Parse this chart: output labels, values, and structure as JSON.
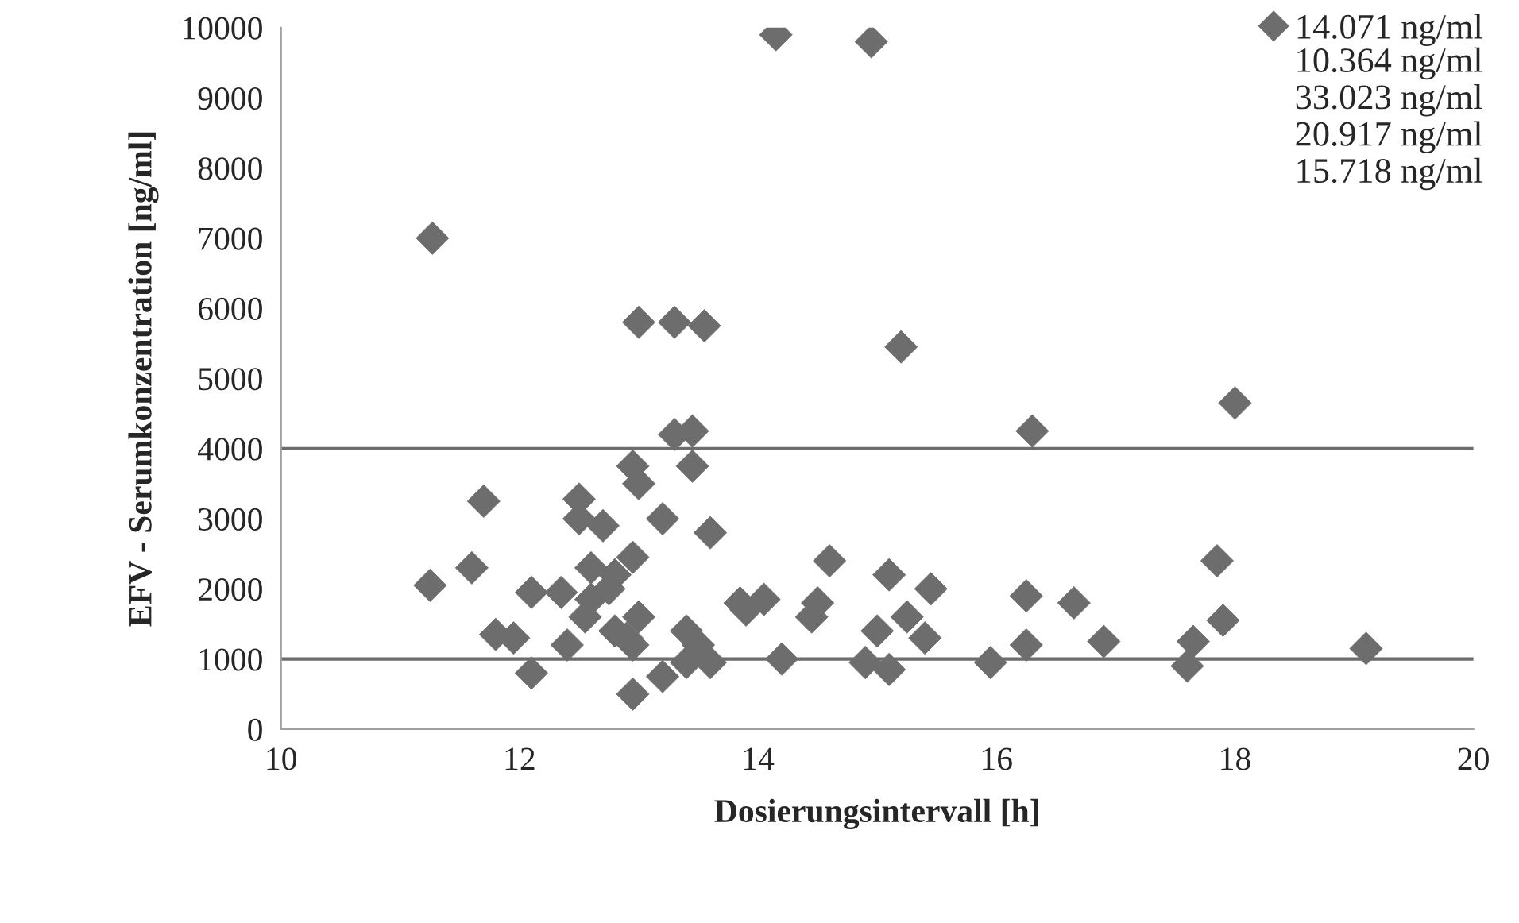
{
  "chart_data": {
    "type": "scatter",
    "xlabel": "Dosierungsintervall [h]",
    "ylabel": "EFV - Serumkonzentration [ng/ml]",
    "xlim": [
      10,
      20
    ],
    "xticks": [
      10,
      12,
      14,
      16,
      18,
      20
    ],
    "ylim": [
      0,
      10000
    ],
    "yticks": [
      0,
      1000,
      2000,
      3000,
      4000,
      5000,
      6000,
      7000,
      8000,
      9000,
      10000
    ],
    "grid": false,
    "legend": "top right",
    "marker": "diamond",
    "ref_lines": [
      {
        "axis": "y",
        "value": 1000,
        "color": "#6d6d6d"
      },
      {
        "axis": "y",
        "value": 4000,
        "color": "#6d6d6d"
      }
    ],
    "annotations": [
      "10.364 ng/ml",
      "33.023 ng/ml",
      "20.917 ng/ml",
      "15.718 ng/ml"
    ],
    "series": [
      {
        "name": "14.071 ng/ml",
        "color": "#6d6d6d",
        "x": [
          11.27,
          11.25,
          11.6,
          11.7,
          11.8,
          11.95,
          12.1,
          12.1,
          12.35,
          12.4,
          12.5,
          12.5,
          12.55,
          12.6,
          12.6,
          12.7,
          12.75,
          12.8,
          12.8,
          12.9,
          12.95,
          12.95,
          13.0,
          12.95,
          13.0,
          12.95,
          13.0,
          13.2,
          13.2,
          13.3,
          13.3,
          13.4,
          13.4,
          13.45,
          13.45,
          13.5,
          13.55,
          13.6,
          13.6,
          13.85,
          13.9,
          14.05,
          14.15,
          14.2,
          14.45,
          14.5,
          14.6,
          14.9,
          14.95,
          15.0,
          15.1,
          15.1,
          15.2,
          15.25,
          15.4,
          15.45,
          15.95,
          16.25,
          16.25,
          16.3,
          16.65,
          16.9,
          17.6,
          17.65,
          17.85,
          17.9,
          18.0,
          19.1
        ],
        "values": [
          7000,
          2050,
          2300,
          3250,
          1350,
          1300,
          800,
          1950,
          1950,
          1200,
          3280,
          3000,
          1600,
          1850,
          2300,
          2900,
          2000,
          2200,
          1400,
          1300,
          500,
          3750,
          3500,
          2450,
          1600,
          1200,
          5800,
          3000,
          750,
          4200,
          5800,
          1400,
          950,
          4250,
          3750,
          1200,
          5750,
          2800,
          950,
          1800,
          1700,
          1850,
          9900,
          1000,
          1600,
          1800,
          2400,
          950,
          9800,
          1400,
          850,
          2200,
          5450,
          1600,
          1300,
          2000,
          950,
          1900,
          1200,
          4250,
          1800,
          1250,
          900,
          1250,
          2400,
          1550,
          4650,
          1150
        ]
      }
    ]
  }
}
